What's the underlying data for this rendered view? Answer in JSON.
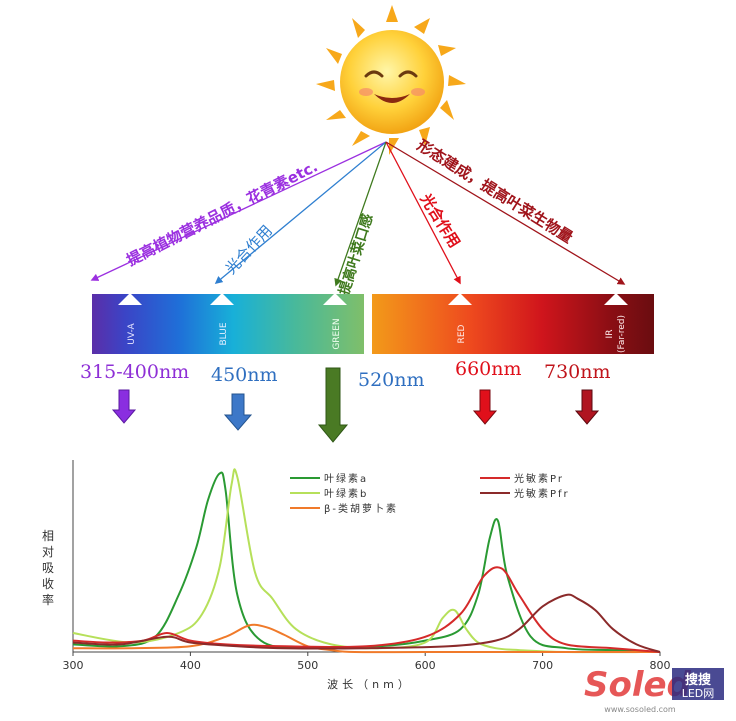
{
  "colors": {
    "purple": "#9b30e0",
    "blue": "#2f7fd0",
    "green": "#3f7a1e",
    "red": "#e0101b",
    "darkred": "#a0141b",
    "chl_a": "#2a9a33",
    "chl_b": "#b6e05a",
    "carotene": "#f07a2a",
    "pr": "#d52a2a",
    "pfr": "#8b2a2a"
  },
  "effects": {
    "purple": "提高植物营养品质，花青素etc.",
    "blue": "光合作用",
    "green": "提高叶菜口感",
    "red": "光合作用",
    "darkred": "形态建成，提高叶菜生物量"
  },
  "spectrum_bands": [
    "UV-A",
    "BLUE",
    "GREEN",
    "RED",
    "IR",
    "(Far-red)"
  ],
  "wavelengths": {
    "uva": "315-400nm",
    "blue": "450nm",
    "green": "520nm",
    "red": "660nm",
    "farred": "730nm"
  },
  "legend": {
    "chl_a": "叶绿素a",
    "chl_b": "叶绿素b",
    "carotene": "β-类胡萝卜素",
    "pr": "光敏素Pr",
    "pfr": "光敏素Pfr"
  },
  "chart_data": {
    "type": "line",
    "xlabel": "波长（nm）",
    "ylabel": "相对吸收率",
    "xlim": [
      300,
      800
    ],
    "x_ticks": [
      "300",
      "400",
      "500",
      "600",
      "700",
      "800"
    ],
    "series": [
      {
        "name": "叶绿素a",
        "color": "#2a9a33",
        "x": [
          300,
          340,
          370,
          390,
          405,
          415,
          425,
          430,
          440,
          460,
          500,
          560,
          600,
          630,
          645,
          655,
          662,
          670,
          690,
          720,
          760,
          800
        ],
        "y": [
          0.04,
          0.03,
          0.08,
          0.3,
          0.55,
          0.8,
          0.94,
          0.85,
          0.3,
          0.06,
          0.02,
          0.03,
          0.06,
          0.12,
          0.3,
          0.6,
          0.69,
          0.4,
          0.08,
          0.02,
          0.01,
          0.0
        ]
      },
      {
        "name": "叶绿素b",
        "color": "#b6e05a",
        "x": [
          300,
          350,
          390,
          410,
          425,
          435,
          440,
          455,
          470,
          490,
          520,
          560,
          600,
          615,
          625,
          635,
          645,
          660,
          680,
          720,
          800
        ],
        "y": [
          0.1,
          0.05,
          0.1,
          0.2,
          0.45,
          0.88,
          0.92,
          0.42,
          0.28,
          0.12,
          0.04,
          0.02,
          0.05,
          0.18,
          0.22,
          0.12,
          0.05,
          0.02,
          0.01,
          0.0,
          0.0
        ]
      },
      {
        "name": "β-类胡萝卜素",
        "color": "#f07a2a",
        "x": [
          300,
          350,
          400,
          430,
          450,
          465,
          480,
          500,
          520,
          540,
          600,
          700,
          800
        ],
        "y": [
          0.02,
          0.02,
          0.03,
          0.08,
          0.14,
          0.13,
          0.09,
          0.03,
          0.01,
          0.0,
          0.0,
          0.0,
          0.0
        ]
      },
      {
        "name": "光敏素Pr",
        "color": "#d52a2a",
        "x": [
          300,
          330,
          360,
          380,
          400,
          430,
          480,
          550,
          600,
          630,
          650,
          665,
          680,
          700,
          720,
          760,
          800
        ],
        "y": [
          0.06,
          0.05,
          0.06,
          0.1,
          0.06,
          0.04,
          0.03,
          0.03,
          0.08,
          0.2,
          0.4,
          0.44,
          0.3,
          0.12,
          0.04,
          0.02,
          0.0
        ]
      },
      {
        "name": "光敏素Pfr",
        "color": "#8b2a2a",
        "x": [
          300,
          340,
          380,
          400,
          440,
          480,
          550,
          620,
          660,
          680,
          700,
          720,
          730,
          745,
          760,
          780,
          800
        ],
        "y": [
          0.05,
          0.04,
          0.08,
          0.05,
          0.03,
          0.02,
          0.02,
          0.03,
          0.06,
          0.12,
          0.24,
          0.3,
          0.28,
          0.22,
          0.12,
          0.04,
          0.0
        ]
      }
    ]
  },
  "watermark": {
    "brand": "Soled",
    "cn": "搜搜",
    "sub": "LED网",
    "url": "www.sosoled.com"
  }
}
